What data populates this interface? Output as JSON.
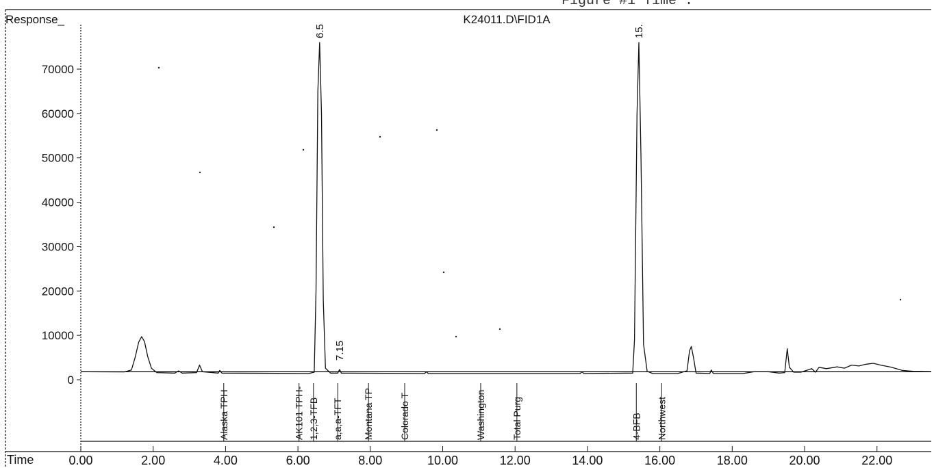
{
  "header_fragments": [
    "Figure #1 Time :"
  ],
  "chart_data": {
    "type": "line",
    "title": "K24011.D\\FID1A",
    "ylabel": "Response_",
    "xlabel": "Time",
    "xlim": [
      0.0,
      23.5
    ],
    "ylim": [
      0,
      80000
    ],
    "x_ticks": [
      "0.00",
      "2.00",
      "4.00",
      "6.00",
      "8.00",
      "10.00",
      "12.00",
      "14.00",
      "16.00",
      "18.00",
      "20.00",
      "22.00"
    ],
    "y_ticks": [
      "0",
      "10000",
      "20000",
      "30000",
      "40000",
      "50000",
      "60000",
      "70000"
    ],
    "grid": false,
    "baseline": 1800,
    "series": [
      {
        "points": [
          [
            0.0,
            1800
          ],
          [
            1.2,
            1750
          ],
          [
            1.4,
            2200
          ],
          [
            1.5,
            5000
          ],
          [
            1.6,
            8500
          ],
          [
            1.68,
            9700
          ],
          [
            1.76,
            8600
          ],
          [
            1.85,
            5200
          ],
          [
            1.95,
            2600
          ],
          [
            2.1,
            1600
          ],
          [
            2.6,
            1500
          ],
          [
            2.7,
            2000
          ],
          [
            2.8,
            1500
          ],
          [
            3.2,
            1600
          ],
          [
            3.28,
            3300
          ],
          [
            3.36,
            1800
          ],
          [
            3.8,
            1500
          ],
          [
            3.84,
            2100
          ],
          [
            3.9,
            1500
          ],
          [
            6.3,
            1400
          ],
          [
            6.45,
            1700
          ],
          [
            6.5,
            20000
          ],
          [
            6.55,
            65000
          ],
          [
            6.6,
            76000
          ],
          [
            6.65,
            60000
          ],
          [
            6.7,
            18000
          ],
          [
            6.76,
            2600
          ],
          [
            6.9,
            1500
          ],
          [
            7.1,
            1500
          ],
          [
            7.15,
            2300
          ],
          [
            7.2,
            1500
          ],
          [
            9.5,
            1400
          ],
          [
            9.55,
            1800
          ],
          [
            9.6,
            1400
          ],
          [
            13.8,
            1400
          ],
          [
            13.85,
            1800
          ],
          [
            13.9,
            1400
          ],
          [
            15.25,
            1500
          ],
          [
            15.3,
            9000
          ],
          [
            15.37,
            60000
          ],
          [
            15.42,
            76000
          ],
          [
            15.48,
            50000
          ],
          [
            15.55,
            8000
          ],
          [
            15.65,
            1900
          ],
          [
            15.8,
            1400
          ],
          [
            16.5,
            1400
          ],
          [
            16.75,
            2000
          ],
          [
            16.82,
            6500
          ],
          [
            16.87,
            7500
          ],
          [
            16.93,
            5000
          ],
          [
            17.0,
            1500
          ],
          [
            17.38,
            1400
          ],
          [
            17.42,
            2200
          ],
          [
            17.48,
            1400
          ],
          [
            18.3,
            1400
          ],
          [
            18.6,
            1800
          ],
          [
            19.0,
            1800
          ],
          [
            19.3,
            1500
          ],
          [
            19.45,
            1600
          ],
          [
            19.52,
            7000
          ],
          [
            19.58,
            2800
          ],
          [
            19.7,
            1700
          ],
          [
            19.9,
            1700
          ],
          [
            20.2,
            2500
          ],
          [
            20.3,
            1700
          ],
          [
            20.4,
            2800
          ],
          [
            20.6,
            2500
          ],
          [
            20.9,
            2900
          ],
          [
            21.1,
            2600
          ],
          [
            21.3,
            3300
          ],
          [
            21.5,
            3100
          ],
          [
            21.7,
            3500
          ],
          [
            21.9,
            3700
          ],
          [
            22.1,
            3300
          ],
          [
            22.4,
            2800
          ],
          [
            22.7,
            2100
          ],
          [
            23.0,
            1900
          ],
          [
            23.5,
            1850
          ]
        ]
      }
    ],
    "peak_labels": [
      {
        "x": 6.6,
        "text": "6.5"
      },
      {
        "x": 7.15,
        "text": "7.15"
      },
      {
        "x": 15.42,
        "text": "15."
      }
    ],
    "window_labels": [
      {
        "x": 3.95,
        "text": "Alaska TPH"
      },
      {
        "x": 6.03,
        "text": "AK101 TPH-"
      },
      {
        "x": 6.43,
        "text": "1,2,3-TFB"
      },
      {
        "x": 7.1,
        "text": "a,a,a-TFT"
      },
      {
        "x": 7.95,
        "text": "Montana TP"
      },
      {
        "x": 8.95,
        "text": "Colorado T"
      },
      {
        "x": 11.05,
        "text": "Washington"
      },
      {
        "x": 12.05,
        "text": "Total Purg"
      },
      {
        "x": 15.35,
        "text": "4-BFB"
      },
      {
        "x": 16.05,
        "text": "Northwest"
      }
    ]
  }
}
